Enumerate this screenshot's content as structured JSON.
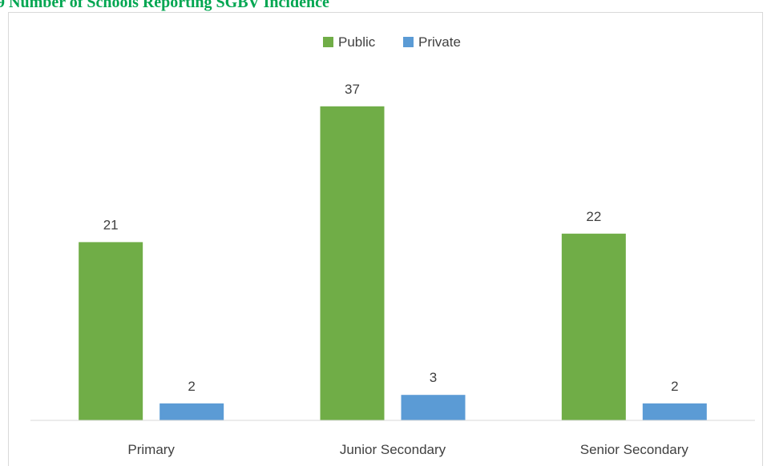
{
  "title": {
    "text": "9 Number of Schools Reporting SGBV Incidence",
    "color": "#00a651"
  },
  "chart_data": {
    "type": "bar",
    "categories": [
      "Primary",
      "Junior Secondary",
      "Senior Secondary"
    ],
    "series": [
      {
        "name": "Public",
        "values": [
          21,
          37,
          22
        ],
        "color": "#70ad47"
      },
      {
        "name": "Private",
        "values": [
          2,
          3,
          2
        ],
        "color": "#5b9bd5"
      }
    ],
    "ylim": [
      0,
      40
    ],
    "grid": false,
    "legend_position": "top-center",
    "data_labels": true,
    "title": "",
    "xlabel": "",
    "ylabel": ""
  }
}
